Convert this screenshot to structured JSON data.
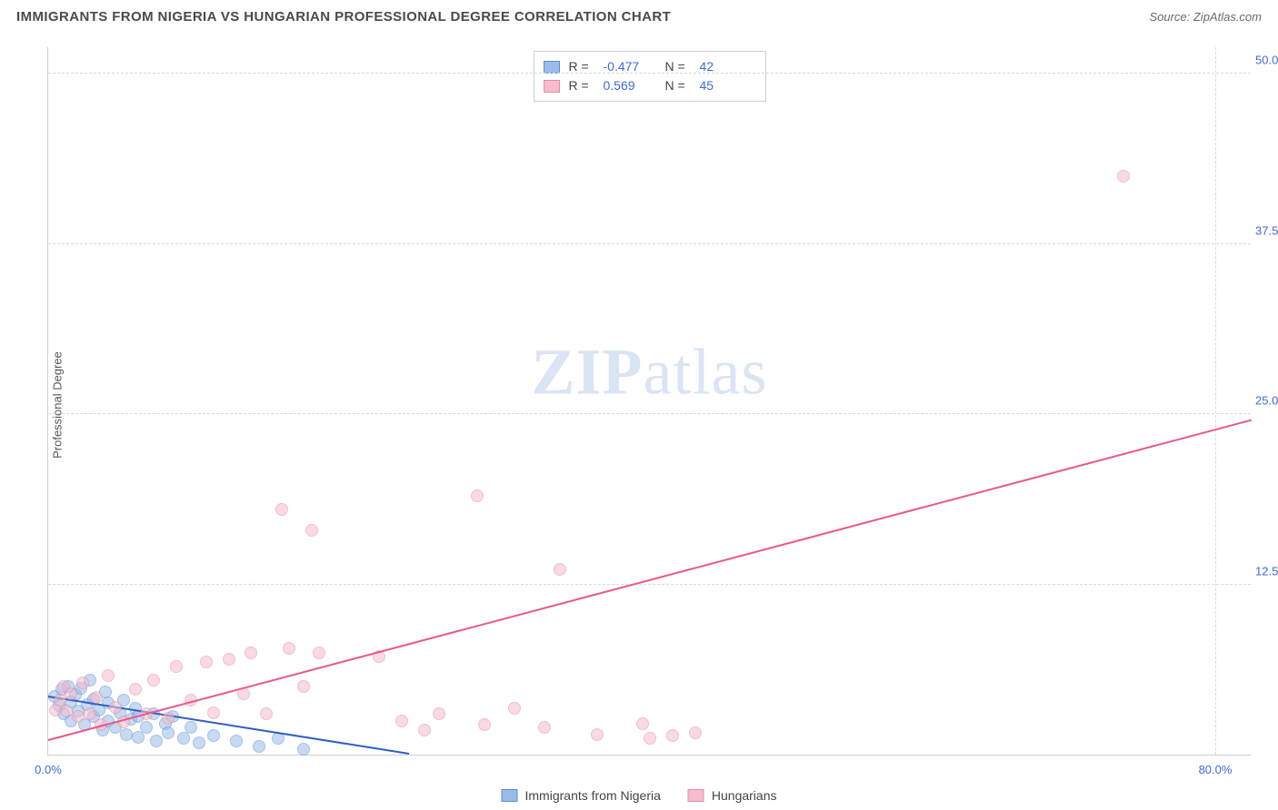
{
  "header": {
    "title": "IMMIGRANTS FROM NIGERIA VS HUNGARIAN PROFESSIONAL DEGREE CORRELATION CHART",
    "source_prefix": "Source: ",
    "source_name": "ZipAtlas.com"
  },
  "chart": {
    "type": "scatter",
    "ylabel": "Professional Degree",
    "xlim": [
      0,
      80
    ],
    "ylim": [
      0,
      52
    ],
    "xtick_labels": {
      "min": "0.0%",
      "max": "80.0%"
    },
    "ytick_positions": [
      12.5,
      25.0,
      37.5,
      50.0
    ],
    "ytick_labels": [
      "12.5%",
      "25.0%",
      "37.5%",
      "50.0%"
    ],
    "grid_color": "#d9d9d9",
    "axis_color": "#cfcfcf",
    "background_color": "#ffffff",
    "tick_color": "#3f6ad8",
    "marker_size": 14,
    "marker_opacity": 0.55,
    "watermark": "ZIPatlas",
    "series": [
      {
        "name": "Immigrants from Nigeria",
        "fill_color": "#9bbce8",
        "border_color": "#5a8fd6",
        "trend_color": "#2f5fc4",
        "R": "-0.477",
        "N": "42",
        "trend": {
          "x1": 0,
          "y1": 4.2,
          "x2": 24,
          "y2": 0.0
        },
        "points": [
          [
            0.4,
            4.3
          ],
          [
            0.7,
            3.6
          ],
          [
            0.9,
            4.8
          ],
          [
            1.0,
            3.0
          ],
          [
            1.3,
            5.0
          ],
          [
            1.5,
            3.9
          ],
          [
            1.5,
            2.5
          ],
          [
            1.8,
            4.4
          ],
          [
            2.0,
            3.2
          ],
          [
            2.2,
            4.9
          ],
          [
            2.4,
            2.2
          ],
          [
            2.6,
            3.7
          ],
          [
            2.8,
            5.5
          ],
          [
            3.0,
            2.8
          ],
          [
            3.0,
            4.1
          ],
          [
            3.4,
            3.3
          ],
          [
            3.6,
            1.8
          ],
          [
            3.8,
            4.6
          ],
          [
            4.0,
            2.5
          ],
          [
            4.0,
            3.8
          ],
          [
            4.5,
            2.0
          ],
          [
            4.8,
            3.1
          ],
          [
            5.0,
            4.0
          ],
          [
            5.2,
            1.5
          ],
          [
            5.5,
            2.6
          ],
          [
            5.8,
            3.4
          ],
          [
            6.0,
            1.3
          ],
          [
            6.0,
            2.8
          ],
          [
            6.5,
            2.0
          ],
          [
            7.0,
            3.0
          ],
          [
            7.2,
            1.0
          ],
          [
            7.8,
            2.3
          ],
          [
            8.0,
            1.6
          ],
          [
            8.3,
            2.8
          ],
          [
            9.0,
            1.2
          ],
          [
            9.5,
            2.0
          ],
          [
            10.0,
            0.9
          ],
          [
            11.0,
            1.4
          ],
          [
            12.5,
            1.0
          ],
          [
            14.0,
            0.6
          ],
          [
            15.3,
            1.2
          ],
          [
            17.0,
            0.4
          ]
        ]
      },
      {
        "name": "Hungarians",
        "fill_color": "#f5bccc",
        "border_color": "#e88aa6",
        "trend_color": "#e85a87",
        "R": "0.569",
        "N": "45",
        "trend": {
          "x1": 0,
          "y1": 1.0,
          "x2": 80,
          "y2": 24.5
        },
        "points": [
          [
            0.5,
            3.3
          ],
          [
            0.8,
            4.0
          ],
          [
            1.0,
            5.0
          ],
          [
            1.2,
            3.2
          ],
          [
            1.5,
            4.5
          ],
          [
            2.0,
            2.8
          ],
          [
            2.3,
            5.3
          ],
          [
            2.8,
            3.0
          ],
          [
            3.2,
            4.2
          ],
          [
            3.5,
            2.2
          ],
          [
            4.0,
            5.8
          ],
          [
            4.5,
            3.5
          ],
          [
            5.0,
            2.4
          ],
          [
            5.8,
            4.8
          ],
          [
            6.5,
            3.0
          ],
          [
            7.0,
            5.5
          ],
          [
            8.0,
            2.7
          ],
          [
            8.5,
            6.5
          ],
          [
            9.5,
            4.0
          ],
          [
            10.5,
            6.8
          ],
          [
            11.0,
            3.1
          ],
          [
            12.0,
            7.0
          ],
          [
            13.0,
            4.5
          ],
          [
            13.5,
            7.5
          ],
          [
            14.5,
            3.0
          ],
          [
            15.5,
            18.0
          ],
          [
            16.0,
            7.8
          ],
          [
            17.0,
            5.0
          ],
          [
            17.5,
            16.5
          ],
          [
            18.0,
            7.5
          ],
          [
            22.0,
            7.2
          ],
          [
            23.5,
            2.5
          ],
          [
            25.0,
            1.8
          ],
          [
            26.0,
            3.0
          ],
          [
            28.5,
            19.0
          ],
          [
            29.0,
            2.2
          ],
          [
            31.0,
            3.4
          ],
          [
            33.0,
            2.0
          ],
          [
            34.0,
            13.6
          ],
          [
            36.5,
            1.5
          ],
          [
            39.5,
            2.3
          ],
          [
            40.0,
            1.2
          ],
          [
            41.5,
            1.4
          ],
          [
            43.0,
            1.6
          ],
          [
            71.5,
            42.5
          ]
        ]
      }
    ]
  },
  "stats_legend": {
    "r_label": "R =",
    "n_label": "N ="
  },
  "bottom_legend": {
    "items": [
      "Immigrants from Nigeria",
      "Hungarians"
    ]
  }
}
